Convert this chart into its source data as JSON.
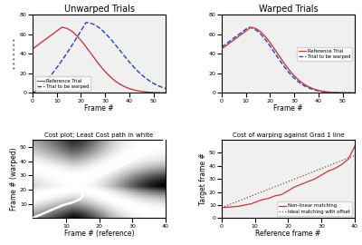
{
  "title1": "Unwarped Trials",
  "title2": "Warped Trials",
  "title3": "Cost plot; Least Cost path in white",
  "title4": "Cost of warping against Grad 1 line",
  "xlabel": "Frame #",
  "ylabel2": "Frame # (warped)",
  "ylabel3": "Target frame #",
  "xlabel3": "Frame # (reference)",
  "xlabel4": "Reference frame #",
  "legend1_ref": "Reference Trial",
  "legend1_warp": "Trial to be warped",
  "legend4_nonlinear": "Non-linear matching",
  "legend4_ideal": "Ideal matching with offset",
  "ref_color": "#c04040",
  "warp_color": "#2244bb",
  "nonlinear_color": "#cc3333",
  "ideal_color": "#884444",
  "bg_color": "#f0f0f0"
}
